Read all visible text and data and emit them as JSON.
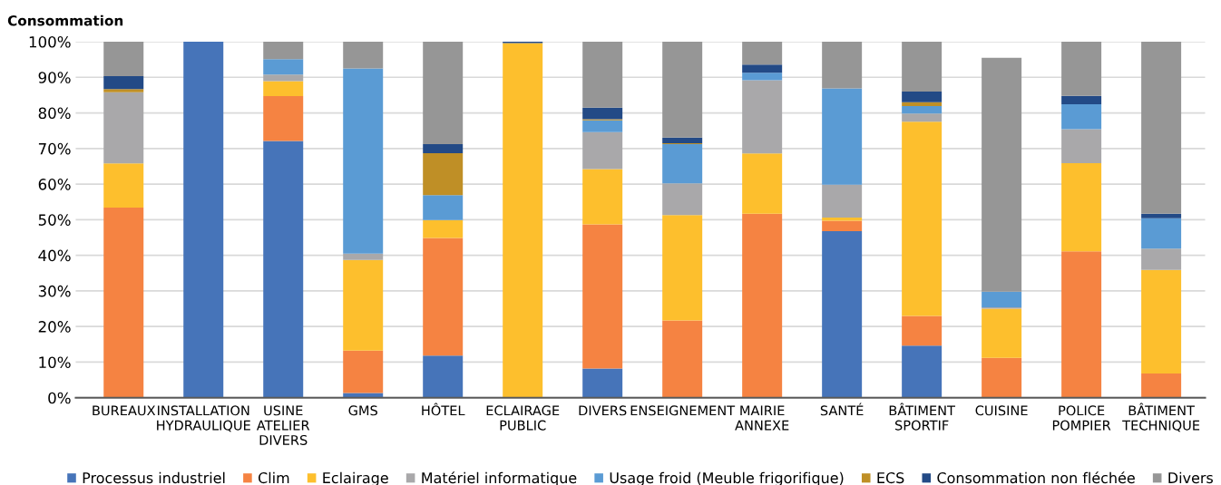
{
  "chart_data": {
    "type": "bar",
    "stacked": true,
    "title": "Consommation",
    "categories": [
      "BUREAUX",
      "INSTALLATION\nHYDRAULIQUE",
      "USINE\nATELIER\nDIVERS",
      "GMS",
      "HÔTEL",
      "ECLAIRAGE\nPUBLIC",
      "DIVERS",
      "ENSEIGNEMENT",
      "MAIRIE\nANNEXE",
      "SANTÉ",
      "BÂTIMENT\nSPORTIF",
      "CUISINE",
      "POLICE\nPOMPIER",
      "BÂTIMENT\nTECHNIQUE"
    ],
    "series": [
      {
        "name": "Processus industriel",
        "color": "#4674b9",
        "values": [
          0,
          100,
          72.1,
          1.3,
          11.8,
          0,
          8.2,
          0,
          0,
          46.8,
          14.6,
          0,
          0,
          0
        ]
      },
      {
        "name": "Clim",
        "color": "#f58342",
        "values": [
          53.4,
          0,
          12.6,
          11.9,
          33.1,
          0,
          40.5,
          21.7,
          51.7,
          2.9,
          8.4,
          11.2,
          41.1,
          6.8
        ]
      },
      {
        "name": "Eclairage",
        "color": "#fdbf2d",
        "values": [
          12.4,
          0,
          4.2,
          25.5,
          5.0,
          99.6,
          15.5,
          29.6,
          16.9,
          0.9,
          54.5,
          13.8,
          24.8,
          29.1
        ]
      },
      {
        "name": "Matériel informatique",
        "color": "#a9a8aa",
        "values": [
          20.0,
          0,
          1.9,
          1.8,
          0,
          0,
          10.4,
          8.9,
          20.6,
          9.2,
          2.3,
          0.4,
          9.5,
          6.0
        ]
      },
      {
        "name": "Usage froid (Meuble frigorifique)",
        "color": "#5a9bd4",
        "values": [
          0,
          0,
          4.3,
          52.0,
          7.0,
          0,
          3.3,
          11.0,
          2.1,
          27.1,
          2.1,
          4.4,
          7.0,
          8.5
        ]
      },
      {
        "name": "ECS",
        "color": "#bf8f26",
        "values": [
          0.9,
          0,
          0,
          0,
          11.8,
          0,
          0.3,
          0.3,
          0,
          0,
          1.1,
          0,
          0,
          0
        ]
      },
      {
        "name": "Consommation non fléchée",
        "color": "#234a86",
        "values": [
          3.6,
          0,
          0,
          0,
          2.5,
          0.4,
          3.3,
          1.6,
          2.3,
          0,
          3.0,
          0,
          2.4,
          1.3
        ]
      },
      {
        "name": "Divers",
        "color": "#969696",
        "values": [
          9.7,
          0,
          4.9,
          7.5,
          28.8,
          0,
          18.5,
          26.9,
          6.4,
          13.1,
          14.0,
          65.7,
          15.2,
          48.3
        ]
      }
    ],
    "ylim": [
      0,
      100
    ],
    "yticks": [
      {
        "value": 0,
        "label": "0%"
      },
      {
        "value": 10,
        "label": "10%"
      },
      {
        "value": 20,
        "label": "20%"
      },
      {
        "value": 30,
        "label": "30%"
      },
      {
        "value": 40,
        "label": "40%"
      },
      {
        "value": 50,
        "label": "50%"
      },
      {
        "value": 60,
        "label": "60%"
      },
      {
        "value": 70,
        "label": "70%"
      },
      {
        "value": 80,
        "label": "80%"
      },
      {
        "value": 90,
        "label": "90%"
      },
      {
        "value": 100,
        "label": "100%"
      }
    ],
    "grid": "y",
    "legend": "bottom"
  }
}
